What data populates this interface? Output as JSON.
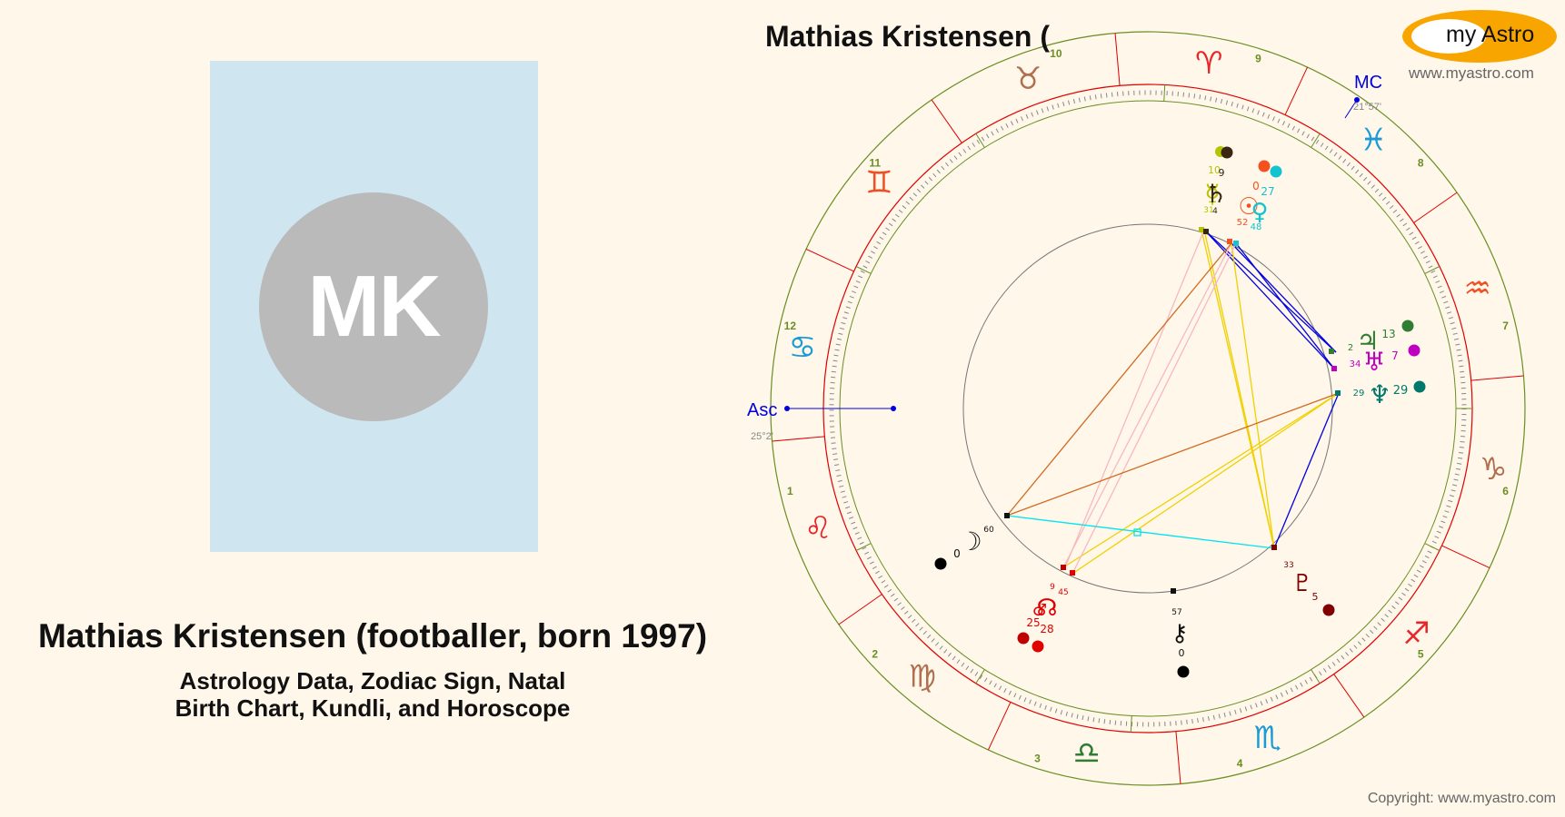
{
  "profile": {
    "initials": "MK",
    "full_name": "Mathias Kristensen (footballer, born 1997)",
    "subtitle_line1": "Astrology Data, Zodiac Sign, Natal",
    "subtitle_line2": "Birth Chart, Kundli, and Horoscope"
  },
  "chart_header": {
    "title": "Mathias Kristensen (",
    "logo_text": "my Astro",
    "logo_url": "www.myastro.com"
  },
  "footer": {
    "copyright": "Copyright: www.myastro.com"
  },
  "angles": {
    "asc_label": "Asc",
    "asc_degree": "25°2'",
    "mc_label": "MC",
    "mc_degree": "21°57'"
  },
  "house_numbers": [
    "1",
    "2",
    "3",
    "4",
    "5",
    "6",
    "7",
    "8",
    "9",
    "10",
    "11",
    "12"
  ],
  "signs": [
    {
      "name": "aries",
      "glyph": "♈",
      "color": "#e8262a"
    },
    {
      "name": "taurus",
      "glyph": "♉",
      "color": "#b07050"
    },
    {
      "name": "gemini",
      "glyph": "♊",
      "color": "#f04e23"
    },
    {
      "name": "cancer",
      "glyph": "♋",
      "color": "#1a9ad6"
    },
    {
      "name": "leo",
      "glyph": "♌",
      "color": "#e8262a"
    },
    {
      "name": "virgo",
      "glyph": "♍",
      "color": "#b07050"
    },
    {
      "name": "libra",
      "glyph": "♎",
      "color": "#2e7d32"
    },
    {
      "name": "scorpio",
      "glyph": "♏",
      "color": "#1a9ad6"
    },
    {
      "name": "sagittarius",
      "glyph": "♐",
      "color": "#e8262a"
    },
    {
      "name": "capricorn",
      "glyph": "♑",
      "color": "#b07050"
    },
    {
      "name": "aquarius",
      "glyph": "♒",
      "color": "#f04e23"
    },
    {
      "name": "pisces",
      "glyph": "♓",
      "color": "#1a9ad6"
    }
  ],
  "planets": [
    {
      "name": "sun",
      "glyph": "☉",
      "color": "#f4511e",
      "deg": "0",
      "min": "52"
    },
    {
      "name": "venus",
      "glyph": "♀",
      "color": "#12c3d0",
      "deg": "27",
      "min": "48"
    },
    {
      "name": "saturn",
      "glyph": "♄",
      "color": "#3b2410",
      "deg": "9",
      "min": "4"
    },
    {
      "name": "mercury",
      "glyph": "☿",
      "color": "#b5c400",
      "deg": "10",
      "min": "31"
    },
    {
      "name": "jupiter",
      "glyph": "♃",
      "color": "#2e7d32",
      "deg": "13",
      "min": "2"
    },
    {
      "name": "uranus",
      "glyph": "♅",
      "color": "#c000c0",
      "deg": "7",
      "min": "34"
    },
    {
      "name": "neptune",
      "glyph": "♆",
      "color": "#00796b",
      "deg": "29",
      "min": "29"
    },
    {
      "name": "pluto",
      "glyph": "♇",
      "color": "#800000",
      "deg": "5",
      "min": "33"
    },
    {
      "name": "chiron",
      "glyph": "⚷",
      "color": "#111111",
      "deg": "0",
      "min": "57"
    },
    {
      "name": "moon",
      "glyph": "☽",
      "color": "#111111",
      "deg": "0",
      "min": "60"
    },
    {
      "name": "mars",
      "glyph": "♂",
      "color": "#e00000",
      "deg": "9",
      "min": "45"
    },
    {
      "name": "node",
      "glyph": "☊",
      "color": "#e00000",
      "deg": "25",
      "min": "28"
    }
  ],
  "colors": {
    "background": "#fef7ea",
    "house_line": "#6b8e23",
    "sign_line": "#e00000",
    "logo": "#f8a500",
    "angle": "#0000ff"
  }
}
